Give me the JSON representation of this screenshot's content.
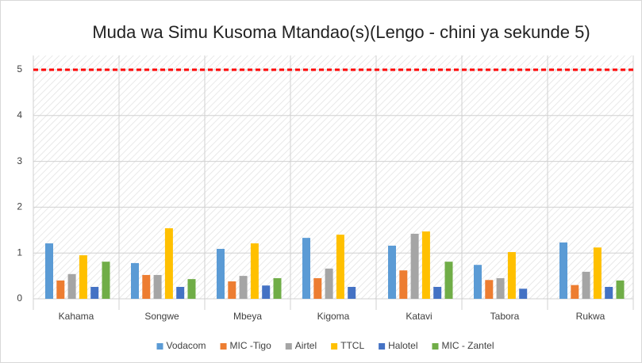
{
  "chart_data": {
    "type": "bar",
    "title": "Muda wa Simu Kusoma Mtandao(s)(Lengo - chini ya  sekunde 5)",
    "categories": [
      "Kahama",
      "Songwe",
      "Mbeya",
      "Kigoma",
      "Katavi",
      "Tabora",
      "Rukwa"
    ],
    "series": [
      {
        "name": "Vodacom",
        "color": "#5b9bd5",
        "values": [
          1.21,
          0.78,
          1.09,
          1.33,
          1.16,
          0.74,
          1.23
        ]
      },
      {
        "name": "MIC -Tigo",
        "color": "#ed7d31",
        "values": [
          0.4,
          0.52,
          0.38,
          0.45,
          0.62,
          0.41,
          0.3
        ]
      },
      {
        "name": "Airtel",
        "color": "#a5a5a5",
        "values": [
          0.54,
          0.52,
          0.5,
          0.66,
          1.42,
          0.45,
          0.59
        ]
      },
      {
        "name": "TTCL",
        "color": "#ffc000",
        "values": [
          0.95,
          1.54,
          1.21,
          1.4,
          1.47,
          1.02,
          1.12
        ]
      },
      {
        "name": "Halotel",
        "color": "#4472c4",
        "values": [
          0.26,
          0.26,
          0.29,
          0.26,
          0.26,
          0.22,
          0.26
        ]
      },
      {
        "name": "MIC - Zantel",
        "color": "#70ad47",
        "values": [
          0.81,
          0.43,
          0.45,
          null,
          0.81,
          null,
          0.4
        ]
      }
    ],
    "target": 5,
    "target_color": "#ff0000",
    "ylim": [
      0,
      5
    ],
    "yticks": [
      0,
      1,
      2,
      3,
      4,
      5
    ],
    "grid": true
  }
}
